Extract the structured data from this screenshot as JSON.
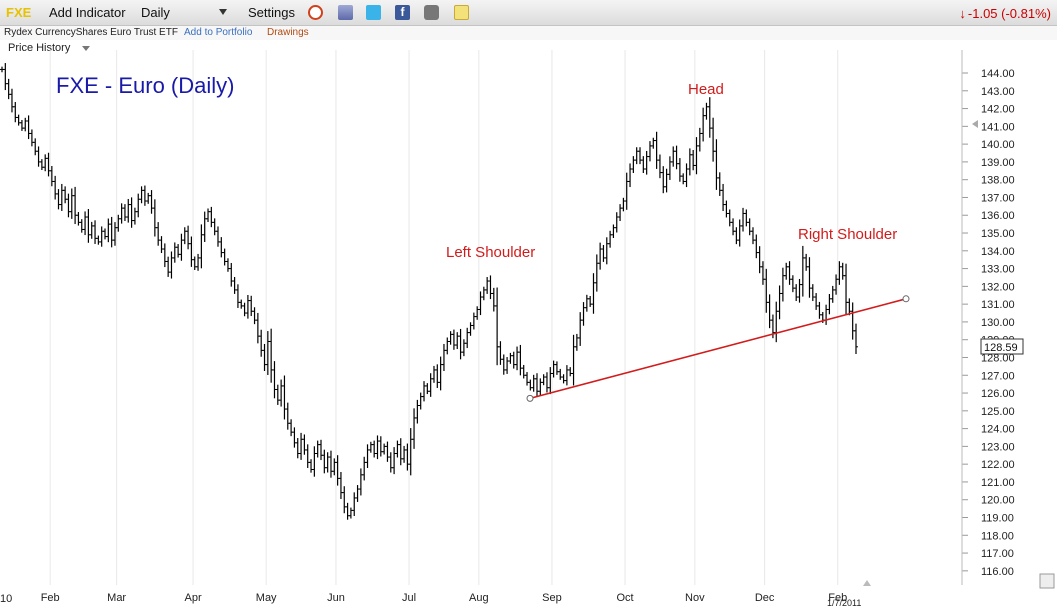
{
  "toolbar": {
    "symbol": "FXE",
    "add_indicator": "Add Indicator",
    "period": "Daily",
    "settings": "Settings",
    "change": "-1.05 (-0.81%)",
    "icons": [
      "alarm-clock-icon",
      "database-icon",
      "twitter-icon",
      "facebook-icon",
      "camera-icon",
      "notepad-icon"
    ]
  },
  "subbar": {
    "instrument_name": "Rydex CurrencyShares Euro Trust ETF",
    "add_to_portfolio": "Add to Portfolio",
    "drawings": "Drawings"
  },
  "panel": {
    "label": "Price History"
  },
  "colors": {
    "title": "#1a1aa8",
    "annotation": "#d21c1c",
    "neckline": "#d21c1c",
    "bars": "#000000",
    "change_down": "#cc0000",
    "symbol": "#e6c200"
  },
  "chart_data": {
    "type": "ohlc",
    "title": "FXE - Euro (Daily)",
    "y_axis_position": "right",
    "ylim": [
      115,
      145
    ],
    "y_ticks": [
      "144.00",
      "143.00",
      "142.00",
      "141.00",
      "140.00",
      "139.00",
      "138.00",
      "137.00",
      "136.00",
      "135.00",
      "134.00",
      "133.00",
      "132.00",
      "131.00",
      "130.00",
      "129.00",
      "128.00",
      "127.00",
      "126.00",
      "125.00",
      "124.00",
      "123.00",
      "122.00",
      "121.00",
      "120.00",
      "119.00",
      "118.00",
      "117.00",
      "116.00"
    ],
    "x_ticks": [
      "Feb",
      "Mar",
      "Apr",
      "May",
      "Jun",
      "Jul",
      "Aug",
      "Sep",
      "Oct",
      "Nov",
      "Dec",
      "Feb"
    ],
    "x_start_partial_label": "10",
    "last_price": "128.59",
    "last_date_label": "1/7/2011",
    "annotations": [
      {
        "text": "Left Shoulder"
      },
      {
        "text": "Head"
      },
      {
        "text": "Right Shoulder"
      }
    ],
    "neckline": {
      "from": {
        "date": "Aug 25",
        "price": 125.7
      },
      "to": {
        "date": "Jan 31",
        "price": 131.3
      }
    },
    "daily_closes": [
      {
        "month": "Jan",
        "closes": [
          144.2,
          143.4,
          142.8,
          142.1,
          141.5,
          141.2,
          140.9,
          141.3,
          140.6,
          140.1,
          139.6,
          139.0,
          138.7,
          139.2,
          138.5
        ]
      },
      {
        "month": "Feb",
        "closes": [
          137.9,
          137.2,
          136.6,
          137.4,
          136.9,
          136.2,
          137.1,
          136.0,
          135.6,
          135.2,
          135.9,
          134.9,
          135.4,
          134.7,
          134.5,
          135.1,
          134.8,
          135.5,
          134.6,
          135.3
        ]
      },
      {
        "month": "Mar",
        "closes": [
          135.8,
          136.4,
          135.9,
          136.6,
          135.7,
          136.2,
          136.9,
          137.4,
          136.8,
          137.1,
          136.4,
          135.3,
          134.6,
          134.1,
          133.4,
          132.8,
          133.6,
          134.2,
          133.8,
          134.6,
          135.1,
          134.4,
          133.5
        ]
      },
      {
        "month": "Apr",
        "closes": [
          133.1,
          133.6,
          134.9,
          135.8,
          136.2,
          135.6,
          135.1,
          134.5,
          133.9,
          133.4,
          133.0,
          132.3,
          131.8,
          131.1,
          130.9,
          130.5,
          131.2,
          130.6,
          130.1,
          129.2,
          128.4,
          127.6
        ]
      },
      {
        "month": "May",
        "closes": [
          128.9,
          127.3,
          126.2,
          125.6,
          126.4,
          125.1,
          124.3,
          123.8,
          123.2,
          122.6,
          123.4,
          122.8,
          122.1,
          121.7,
          122.6,
          123.1,
          122.5,
          121.8,
          122.4,
          121.6,
          122.1
        ]
      },
      {
        "month": "Jun",
        "closes": [
          121.2,
          120.4,
          119.6,
          119.1,
          119.4,
          120.1,
          120.6,
          121.4,
          122.1,
          122.8,
          123.1,
          122.6,
          123.3,
          122.7,
          123.0,
          122.4,
          121.8,
          122.6,
          123.1,
          122.3,
          122.8,
          122.0
        ]
      },
      {
        "month": "Jul",
        "closes": [
          123.4,
          124.6,
          125.3,
          125.8,
          126.4,
          126.1,
          126.8,
          127.3,
          126.6,
          127.6,
          128.4,
          128.9,
          129.3,
          128.7,
          129.2,
          128.3,
          128.8,
          129.4,
          129.8,
          130.3,
          130.7
        ]
      },
      {
        "month": "Aug",
        "closes": [
          131.4,
          131.8,
          132.3,
          131.6,
          130.9,
          128.6,
          127.9,
          127.3,
          127.8,
          128.1,
          127.6,
          128.3,
          127.4,
          127.0,
          126.6,
          126.3,
          126.8,
          126.1,
          126.6,
          126.9,
          126.3,
          127.1
        ]
      },
      {
        "month": "Sep",
        "closes": [
          127.6,
          127.2,
          126.9,
          126.7,
          127.3,
          127.1,
          128.6,
          129.1,
          130.1,
          130.8,
          131.3,
          131.0,
          132.2,
          133.3,
          134.1,
          133.6,
          134.4,
          134.9,
          135.3,
          135.9,
          136.4,
          136.8
        ]
      },
      {
        "month": "Oct",
        "closes": [
          137.9,
          138.6,
          139.1,
          139.6,
          139.1,
          138.6,
          139.3,
          139.9,
          140.2,
          139.1,
          138.4,
          137.6,
          138.3,
          139.0,
          139.6,
          138.9,
          138.2,
          137.9,
          138.6,
          139.4,
          138.8
        ]
      },
      {
        "month": "Nov",
        "closes": [
          139.9,
          140.6,
          141.6,
          142.1,
          140.9,
          139.6,
          138.1,
          137.4,
          136.6,
          136.1,
          135.6,
          135.1,
          134.6,
          135.4,
          136.1,
          135.6,
          135.1,
          134.6,
          133.9,
          133.1,
          132.4
        ]
      },
      {
        "month": "Dec",
        "closes": [
          131.1,
          130.1,
          129.4,
          130.6,
          131.6,
          132.6,
          133.1,
          132.4,
          131.9,
          131.4,
          132.1,
          133.6,
          133.1,
          131.9,
          131.4,
          130.9,
          130.4,
          130.1,
          130.7,
          131.3,
          131.8,
          132.4
        ]
      },
      {
        "month": "Jan",
        "closes": [
          133.1,
          132.6,
          131.1,
          130.6,
          129.5,
          128.6
        ]
      }
    ]
  }
}
